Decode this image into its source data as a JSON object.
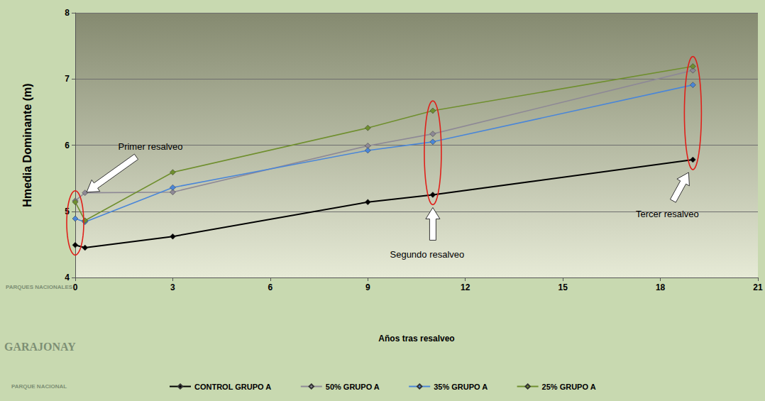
{
  "chart_data": {
    "type": "line",
    "x_label": "Años tras resalveo",
    "y_label": "Hmedia Dominante (m)",
    "x": [
      0,
      0.3,
      3,
      9,
      11,
      19
    ],
    "series": [
      {
        "name": "CONTROL GRUPO A",
        "color": "#000000",
        "marker": "diamond",
        "values": [
          4.49,
          4.45,
          4.62,
          5.14,
          5.25,
          5.78
        ]
      },
      {
        "name": "50% GRUPO A",
        "color": "#8e8996",
        "marker": "diamond",
        "values": [
          5.16,
          5.28,
          5.29,
          5.99,
          6.17,
          7.13
        ]
      },
      {
        "name": "35% GRUPO A",
        "color": "#4a86d8",
        "marker": "diamond",
        "values": [
          4.89,
          4.84,
          5.36,
          5.92,
          6.05,
          6.91
        ]
      },
      {
        "name": "25% GRUPO A",
        "color": "#6f8f2e",
        "marker": "diamond",
        "values": [
          5.14,
          4.86,
          5.59,
          6.26,
          6.52,
          7.19
        ]
      }
    ],
    "xlim": [
      0,
      21
    ],
    "xticks": [
      0,
      3,
      6,
      9,
      12,
      15,
      18,
      21
    ],
    "ylim": [
      4,
      8
    ],
    "yticks": [
      4,
      5,
      6,
      7,
      8
    ],
    "grid": true,
    "legend": "bottom",
    "annotations": [
      {
        "text": "Primer resalveo",
        "x": 0
      },
      {
        "text": "Segundo resalveo",
        "x": 11
      },
      {
        "text": "Tercer resalveo",
        "x": 19
      }
    ],
    "logo_texts": [
      "PARQUES NACIONALES",
      "GARAJONAY",
      "PARQUE NACIONAL"
    ]
  }
}
